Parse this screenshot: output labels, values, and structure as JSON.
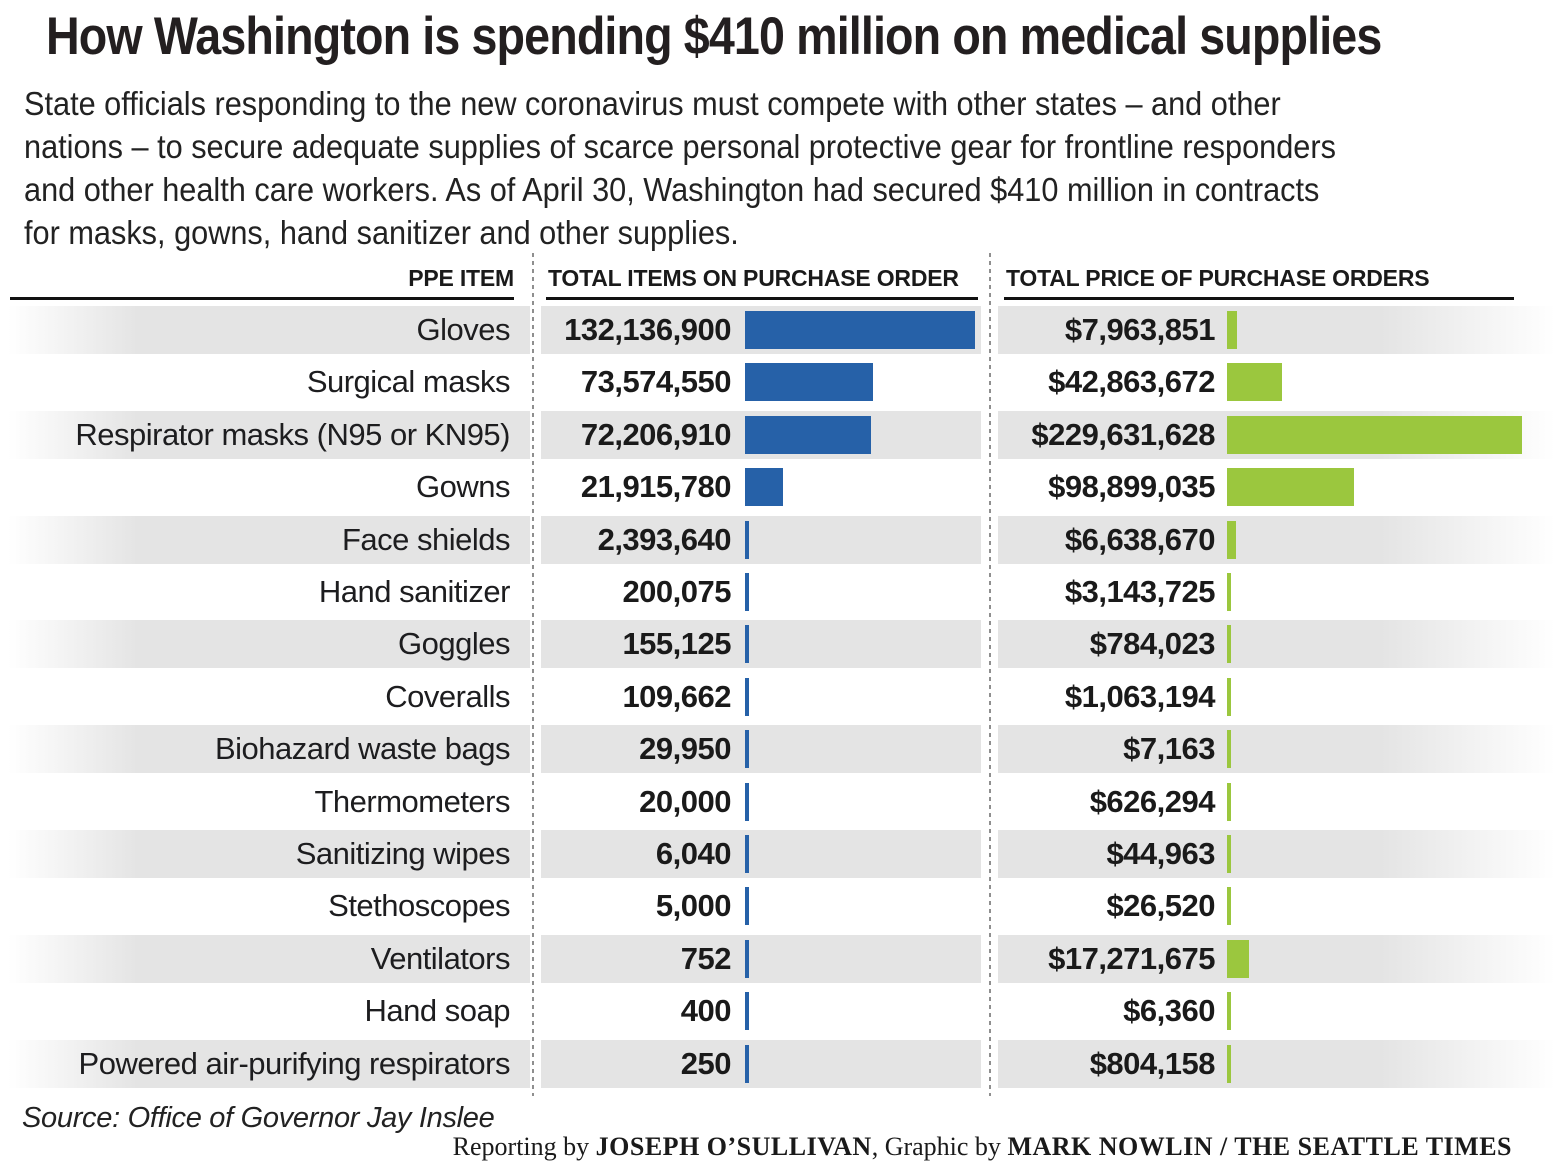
{
  "title": "How Washington is spending $410 million on medical supplies",
  "intro_lines": [
    "State officials responding to the new coronavirus must compete with other states – and other",
    "nations – to secure adequate supplies of scarce personal protective gear for frontline responders",
    "and other health care workers. As of April 30, Washington had secured $410 million in contracts",
    "for masks, gowns, hand sanitizer and other supplies."
  ],
  "table": {
    "columns": {
      "item": "PPE ITEM",
      "items_count": "TOTAL ITEMS ON PURCHASE ORDER",
      "price": "TOTAL PRICE OF PURCHASE ORDERS"
    },
    "rows": [
      {
        "item": "Gloves",
        "items": "132,136,900",
        "price": "$7,963,851"
      },
      {
        "item": "Surgical masks",
        "items": "73,574,550",
        "price": "$42,863,672"
      },
      {
        "item": "Respirator masks (N95 or KN95)",
        "items": "72,206,910",
        "price": "$229,631,628"
      },
      {
        "item": "Gowns",
        "items": "21,915,780",
        "price": "$98,899,035"
      },
      {
        "item": "Face shields",
        "items": "2,393,640",
        "price": "$6,638,670"
      },
      {
        "item": "Hand sanitizer",
        "items": "200,075",
        "price": "$3,143,725"
      },
      {
        "item": "Goggles",
        "items": "155,125",
        "price": "$784,023"
      },
      {
        "item": "Coveralls",
        "items": "109,662",
        "price": "$1,063,194"
      },
      {
        "item": "Biohazard waste bags",
        "items": "29,950",
        "price": "$7,163"
      },
      {
        "item": "Thermometers",
        "items": "20,000",
        "price": "$626,294"
      },
      {
        "item": "Sanitizing wipes",
        "items": "6,040",
        "price": "$44,963"
      },
      {
        "item": "Stethoscopes",
        "items": "5,000",
        "price": "$26,520"
      },
      {
        "item": "Ventilators",
        "items": "752",
        "price": "$17,271,675"
      },
      {
        "item": "Hand soap",
        "items": "400",
        "price": "$6,360"
      },
      {
        "item": "Powered air-purifying respirators",
        "items": "250",
        "price": "$804,158"
      }
    ]
  },
  "source": "Source: Office of Governor Jay Inslee",
  "credit": {
    "prefix": "Reporting by ",
    "reporter": "JOSEPH O’SULLIVAN",
    "middle": ", Graphic by ",
    "artist": "MARK NOWLIN / THE SEATTLE TIMES"
  },
  "colors": {
    "items_bar": "#2661a8",
    "price_bar": "#9bc73e",
    "row_stripe": "#e4e4e4"
  },
  "chart_data": {
    "type": "bar",
    "orientation": "horizontal",
    "title": "How Washington is spending $410 million on medical supplies",
    "categories": [
      "Gloves",
      "Surgical masks",
      "Respirator masks (N95 or KN95)",
      "Gowns",
      "Face shields",
      "Hand sanitizer",
      "Goggles",
      "Coveralls",
      "Biohazard waste bags",
      "Thermometers",
      "Sanitizing wipes",
      "Stethoscopes",
      "Ventilators",
      "Hand soap",
      "Powered air-purifying respirators"
    ],
    "series": [
      {
        "name": "Total items on purchase order",
        "color": "#2661a8",
        "values": [
          132136900,
          73574550,
          72206910,
          21915780,
          2393640,
          200075,
          155125,
          109662,
          29950,
          20000,
          6040,
          5000,
          752,
          400,
          250
        ]
      },
      {
        "name": "Total price of purchase orders",
        "color": "#9bc73e",
        "values": [
          7963851,
          42863672,
          229631628,
          98899035,
          6638670,
          3143725,
          784023,
          1063194,
          7163,
          626294,
          44963,
          26520,
          17271675,
          6360,
          804158
        ]
      }
    ],
    "legend": "none",
    "grid": false,
    "source": "Office of Governor Jay Inslee"
  }
}
